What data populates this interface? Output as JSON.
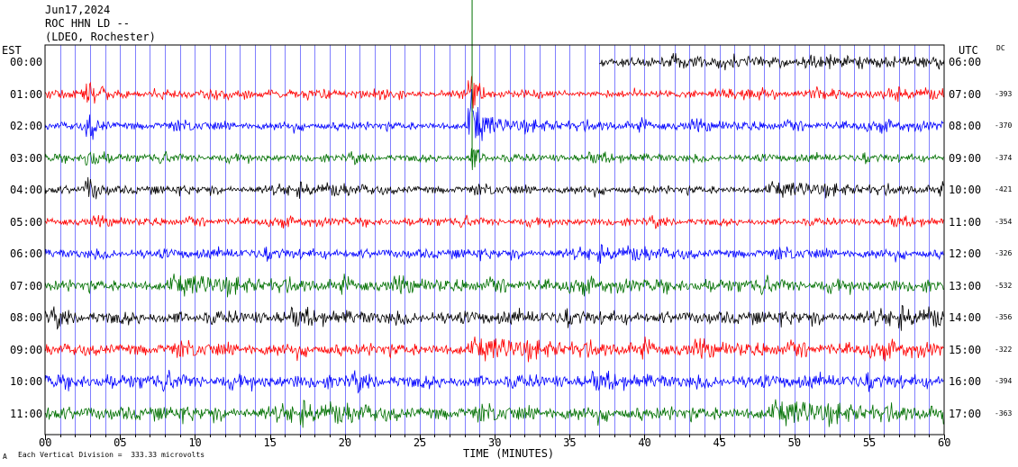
{
  "header": {
    "date": "Jun17,2024",
    "station": "ROC HHN LD --",
    "network": "(LDEO, Rochester)"
  },
  "left_axis_title": "EST",
  "right_axis_title": "UTC",
  "dc_title": "DC",
  "x_axis_label": "TIME (MINUTES)",
  "footer_note": "Each Vertical Division =  333.33 microvolts",
  "footer_mark": "A",
  "colors": {
    "trace_cycle": [
      "#000000",
      "#ff0000",
      "#0000ff",
      "#007000"
    ]
  },
  "chart_data": {
    "type": "line",
    "title": "",
    "xlabel": "TIME (MINUTES)",
    "xlim": [
      0,
      60
    ],
    "x_ticks": [
      "00",
      "05",
      "10",
      "15",
      "20",
      "25",
      "30",
      "35",
      "40",
      "45",
      "50",
      "55",
      "60"
    ],
    "grid": "vertical lines every minute",
    "rows": [
      {
        "est": "00:00",
        "utc": "06:00",
        "dc": "",
        "color": "#000000",
        "data_start_min": 37,
        "amplitude": 0.45
      },
      {
        "est": "01:00",
        "utc": "07:00",
        "dc": "-393",
        "color": "#ff0000",
        "data_start_min": 0,
        "amplitude": 0.35
      },
      {
        "est": "02:00",
        "utc": "08:00",
        "dc": "-370",
        "color": "#0000ff",
        "data_start_min": 0,
        "amplitude": 0.4
      },
      {
        "est": "03:00",
        "utc": "09:00",
        "dc": "-374",
        "color": "#007000",
        "data_start_min": 0,
        "amplitude": 0.35
      },
      {
        "est": "04:00",
        "utc": "10:00",
        "dc": "-421",
        "color": "#000000",
        "data_start_min": 0,
        "amplitude": 0.4
      },
      {
        "est": "05:00",
        "utc": "11:00",
        "dc": "-354",
        "color": "#ff0000",
        "data_start_min": 0,
        "amplitude": 0.35
      },
      {
        "est": "06:00",
        "utc": "12:00",
        "dc": "-326",
        "color": "#0000ff",
        "data_start_min": 0,
        "amplitude": 0.45
      },
      {
        "est": "07:00",
        "utc": "13:00",
        "dc": "-532",
        "color": "#007000",
        "data_start_min": 0,
        "amplitude": 0.55
      },
      {
        "est": "08:00",
        "utc": "14:00",
        "dc": "-356",
        "color": "#000000",
        "data_start_min": 0,
        "amplitude": 0.6
      },
      {
        "est": "09:00",
        "utc": "15:00",
        "dc": "-322",
        "color": "#ff0000",
        "data_start_min": 0,
        "amplitude": 0.6
      },
      {
        "est": "10:00",
        "utc": "16:00",
        "dc": "-394",
        "color": "#0000ff",
        "data_start_min": 0,
        "amplitude": 0.6
      },
      {
        "est": "11:00",
        "utc": "17:00",
        "dc": "-363",
        "color": "#007000",
        "data_start_min": 0,
        "amplitude": 0.65
      }
    ],
    "events": [
      {
        "minute": 3.0,
        "rows": [
          1,
          2,
          3,
          4
        ],
        "description": "large early transient"
      },
      {
        "minute": 28.5,
        "rows": [
          1,
          2,
          3
        ],
        "description": "tall spike"
      }
    ]
  }
}
